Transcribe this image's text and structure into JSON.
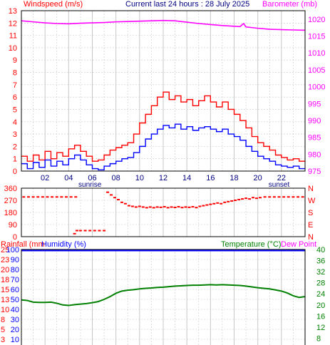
{
  "header": {
    "left_title": "Windspeed (m/s)",
    "center_title": "Current last 24 hours : 28 July 2025",
    "right_title": "Barometer (mb)"
  },
  "colors": {
    "wind_avg": "#0000ff",
    "wind_gust": "#ff0000",
    "barometer": "#ff00ff",
    "direction": "#ff0000",
    "temperature": "#008000",
    "dew_point": "#ff00ff",
    "humidity": "#0000ff",
    "rainfall": "#ff0000",
    "grid": "#c8c8c8",
    "axis": "#000000"
  },
  "chart_data": [
    {
      "id": "wind_baro",
      "type": "line",
      "x_ticks": [
        "02",
        "04",
        "06",
        "08",
        "10",
        "12",
        "14",
        "16",
        "18",
        "20",
        "22"
      ],
      "xlim": [
        0,
        24
      ],
      "annotations": [
        {
          "text": "sunrise",
          "x": 5.8
        },
        {
          "text": "sunset",
          "x": 21.8
        }
      ],
      "y_left_ticks": [
        "0",
        "1",
        "2",
        "3",
        "4",
        "5",
        "6",
        "7",
        "8",
        "9",
        "10",
        "11",
        "12",
        "13"
      ],
      "ylim_left": [
        0,
        13
      ],
      "y_right_ticks": [
        "975",
        "980",
        "985",
        "990",
        "995",
        "1000",
        "1005",
        "1010",
        "1015",
        "1020"
      ],
      "ylim_right": [
        975,
        1022.5
      ],
      "wind_avg_series": [
        [
          0.0,
          0.6
        ],
        [
          0.5,
          0.2
        ],
        [
          1.0,
          0.7
        ],
        [
          1.5,
          0.3
        ],
        [
          2.0,
          0.9
        ],
        [
          2.5,
          0.4
        ],
        [
          3.0,
          0.8
        ],
        [
          3.5,
          0.5
        ],
        [
          4.0,
          1.0
        ],
        [
          4.5,
          1.3
        ],
        [
          5.0,
          0.9
        ],
        [
          5.5,
          0.5
        ],
        [
          6.0,
          0.2
        ],
        [
          6.5,
          0.1
        ],
        [
          7.0,
          0.4
        ],
        [
          7.5,
          0.6
        ],
        [
          8.0,
          0.8
        ],
        [
          8.5,
          1.0
        ],
        [
          9.0,
          1.1
        ],
        [
          9.5,
          1.5
        ],
        [
          10.0,
          2.0
        ],
        [
          10.5,
          2.6
        ],
        [
          11.0,
          3.0
        ],
        [
          11.5,
          3.4
        ],
        [
          12.0,
          3.7
        ],
        [
          12.5,
          3.5
        ],
        [
          13.0,
          3.8
        ],
        [
          13.5,
          3.4
        ],
        [
          14.0,
          3.6
        ],
        [
          14.5,
          3.3
        ],
        [
          15.0,
          3.5
        ],
        [
          15.5,
          3.6
        ],
        [
          16.0,
          3.4
        ],
        [
          16.5,
          3.2
        ],
        [
          17.0,
          3.4
        ],
        [
          17.5,
          3.0
        ],
        [
          18.0,
          2.8
        ],
        [
          18.5,
          2.5
        ],
        [
          19.0,
          2.0
        ],
        [
          19.5,
          1.6
        ],
        [
          20.0,
          1.2
        ],
        [
          20.5,
          1.0
        ],
        [
          21.0,
          0.8
        ],
        [
          21.5,
          0.5
        ],
        [
          22.0,
          0.4
        ],
        [
          22.5,
          0.3
        ],
        [
          23.0,
          0.4
        ],
        [
          23.5,
          0.2
        ]
      ],
      "wind_gust_series": [
        [
          0.0,
          1.2
        ],
        [
          0.5,
          0.8
        ],
        [
          1.0,
          1.3
        ],
        [
          1.5,
          0.9
        ],
        [
          2.0,
          1.6
        ],
        [
          2.5,
          1.0
        ],
        [
          3.0,
          1.5
        ],
        [
          3.5,
          1.2
        ],
        [
          4.0,
          1.8
        ],
        [
          4.5,
          2.1
        ],
        [
          5.0,
          1.6
        ],
        [
          5.5,
          1.2
        ],
        [
          6.0,
          0.8
        ],
        [
          6.5,
          0.9
        ],
        [
          7.0,
          1.3
        ],
        [
          7.5,
          1.7
        ],
        [
          8.0,
          1.9
        ],
        [
          8.5,
          2.1
        ],
        [
          9.0,
          2.3
        ],
        [
          9.5,
          3.0
        ],
        [
          10.0,
          3.9
        ],
        [
          10.5,
          4.6
        ],
        [
          11.0,
          5.3
        ],
        [
          11.5,
          6.0
        ],
        [
          12.0,
          6.4
        ],
        [
          12.5,
          5.8
        ],
        [
          13.0,
          6.1
        ],
        [
          13.5,
          5.6
        ],
        [
          14.0,
          5.8
        ],
        [
          14.5,
          5.3
        ],
        [
          15.0,
          5.7
        ],
        [
          15.5,
          6.1
        ],
        [
          16.0,
          5.6
        ],
        [
          16.5,
          5.2
        ],
        [
          17.0,
          5.6
        ],
        [
          17.5,
          5.0
        ],
        [
          18.0,
          4.6
        ],
        [
          18.5,
          4.1
        ],
        [
          19.0,
          3.5
        ],
        [
          19.5,
          2.8
        ],
        [
          20.0,
          2.3
        ],
        [
          20.5,
          2.0
        ],
        [
          21.0,
          1.7
        ],
        [
          21.5,
          1.3
        ],
        [
          22.0,
          1.1
        ],
        [
          22.5,
          0.9
        ],
        [
          23.0,
          1.0
        ],
        [
          23.5,
          0.8
        ]
      ],
      "barometer_series": [
        [
          0.0,
          1019.5
        ],
        [
          1.0,
          1019.2
        ],
        [
          2.0,
          1018.9
        ],
        [
          3.0,
          1018.7
        ],
        [
          4.0,
          1018.6
        ],
        [
          5.0,
          1018.8
        ],
        [
          6.0,
          1018.9
        ],
        [
          7.0,
          1019.0
        ],
        [
          8.0,
          1019.2
        ],
        [
          9.0,
          1019.3
        ],
        [
          10.0,
          1019.4
        ],
        [
          11.0,
          1019.5
        ],
        [
          12.0,
          1019.6
        ],
        [
          13.0,
          1019.5
        ],
        [
          14.0,
          1019.1
        ],
        [
          15.0,
          1018.7
        ],
        [
          16.0,
          1018.4
        ],
        [
          17.0,
          1018.1
        ],
        [
          18.0,
          1017.9
        ],
        [
          18.5,
          1017.8
        ],
        [
          18.8,
          1018.7
        ],
        [
          19.0,
          1017.7
        ],
        [
          20.0,
          1017.3
        ],
        [
          21.0,
          1017.0
        ],
        [
          22.0,
          1016.9
        ],
        [
          23.0,
          1016.8
        ],
        [
          24.0,
          1016.7
        ]
      ]
    },
    {
      "id": "direction",
      "type": "scatter",
      "xlim": [
        0,
        24
      ],
      "y_left_ticks": [
        "360",
        "270",
        "180",
        "90",
        "0"
      ],
      "ylim": [
        0,
        360
      ],
      "y_right_ticks": [
        "N",
        "W",
        "S",
        "E",
        "N"
      ],
      "points": [
        [
          0.2,
          295
        ],
        [
          0.6,
          295
        ],
        [
          1.0,
          295
        ],
        [
          1.4,
          295
        ],
        [
          1.8,
          295
        ],
        [
          2.2,
          295
        ],
        [
          2.6,
          295
        ],
        [
          3.0,
          295
        ],
        [
          3.4,
          295
        ],
        [
          3.8,
          295
        ],
        [
          4.2,
          295
        ],
        [
          4.6,
          295
        ],
        [
          4.5,
          22
        ],
        [
          4.7,
          45
        ],
        [
          5.0,
          45
        ],
        [
          5.4,
          45
        ],
        [
          5.8,
          45
        ],
        [
          6.2,
          45
        ],
        [
          6.6,
          45
        ],
        [
          7.0,
          45
        ],
        [
          7.3,
          330
        ],
        [
          7.6,
          310
        ],
        [
          7.9,
          290
        ],
        [
          8.2,
          275
        ],
        [
          8.5,
          255
        ],
        [
          8.8,
          245
        ],
        [
          9.1,
          230
        ],
        [
          9.4,
          225
        ],
        [
          9.7,
          220
        ],
        [
          10.0,
          225
        ],
        [
          10.3,
          220
        ],
        [
          10.6,
          215
        ],
        [
          10.9,
          220
        ],
        [
          11.2,
          215
        ],
        [
          11.5,
          220
        ],
        [
          11.8,
          218
        ],
        [
          12.1,
          222
        ],
        [
          12.4,
          215
        ],
        [
          12.7,
          220
        ],
        [
          13.0,
          217
        ],
        [
          13.3,
          222
        ],
        [
          13.6,
          216
        ],
        [
          13.9,
          220
        ],
        [
          14.2,
          218
        ],
        [
          14.5,
          222
        ],
        [
          14.8,
          216
        ],
        [
          15.1,
          225
        ],
        [
          15.4,
          230
        ],
        [
          15.7,
          235
        ],
        [
          16.0,
          240
        ],
        [
          16.3,
          245
        ],
        [
          16.6,
          250
        ],
        [
          16.9,
          245
        ],
        [
          17.2,
          255
        ],
        [
          17.5,
          260
        ],
        [
          17.8,
          265
        ],
        [
          18.1,
          270
        ],
        [
          18.4,
          275
        ],
        [
          18.7,
          280
        ],
        [
          19.0,
          285
        ],
        [
          19.3,
          280
        ],
        [
          19.6,
          290
        ],
        [
          19.9,
          285
        ],
        [
          20.2,
          290
        ],
        [
          20.6,
          295
        ],
        [
          21.0,
          295
        ],
        [
          21.4,
          295
        ],
        [
          21.8,
          295
        ],
        [
          22.2,
          295
        ],
        [
          22.6,
          295
        ],
        [
          23.0,
          295
        ],
        [
          23.4,
          295
        ],
        [
          23.8,
          295
        ]
      ]
    },
    {
      "id": "temp_hum",
      "type": "line",
      "xlim": [
        0,
        24
      ],
      "header_left": [
        "Rainfall (mm",
        "Humidity (%)"
      ],
      "header_right": [
        "Temperature (°C)",
        "Dew Point"
      ],
      "y_left_rain_ticks": [
        "25",
        "23",
        "20",
        "18",
        "15",
        "13",
        "10",
        "8",
        "5",
        "3"
      ],
      "y_left_hum_ticks": [
        "100",
        "90",
        "80",
        "70",
        "60",
        "50",
        "40",
        "30",
        "20",
        "10"
      ],
      "ylim_humidity": [
        0,
        100
      ],
      "y_right_ticks": [
        "40",
        "36",
        "32",
        "28",
        "24",
        "20",
        "16",
        "12",
        "8"
      ],
      "ylim_temperature": [
        4,
        40
      ],
      "humidity_series": [
        [
          0,
          99
        ],
        [
          24,
          99
        ]
      ],
      "temperature_series": [
        [
          0.0,
          21.8
        ],
        [
          0.5,
          21.6
        ],
        [
          1.0,
          21.0
        ],
        [
          1.5,
          20.9
        ],
        [
          2.0,
          20.9
        ],
        [
          2.5,
          21.0
        ],
        [
          3.0,
          20.6
        ],
        [
          3.5,
          20.0
        ],
        [
          4.0,
          19.8
        ],
        [
          4.5,
          20.1
        ],
        [
          5.0,
          20.3
        ],
        [
          5.5,
          20.5
        ],
        [
          6.0,
          20.8
        ],
        [
          6.5,
          21.2
        ],
        [
          7.0,
          22.0
        ],
        [
          7.5,
          23.0
        ],
        [
          8.0,
          24.2
        ],
        [
          8.5,
          25.0
        ],
        [
          9.0,
          25.3
        ],
        [
          9.5,
          25.5
        ],
        [
          10.0,
          25.8
        ],
        [
          10.5,
          26.0
        ],
        [
          11.0,
          26.1
        ],
        [
          11.5,
          26.3
        ],
        [
          12.0,
          26.4
        ],
        [
          12.5,
          26.6
        ],
        [
          13.0,
          26.8
        ],
        [
          13.5,
          26.9
        ],
        [
          14.0,
          27.0
        ],
        [
          14.5,
          27.1
        ],
        [
          15.0,
          27.1
        ],
        [
          15.5,
          27.2
        ],
        [
          16.0,
          27.3
        ],
        [
          16.5,
          27.2
        ],
        [
          17.0,
          27.3
        ],
        [
          17.5,
          27.2
        ],
        [
          18.0,
          27.1
        ],
        [
          18.5,
          27.0
        ],
        [
          19.0,
          26.8
        ],
        [
          19.5,
          26.5
        ],
        [
          20.0,
          26.2
        ],
        [
          20.5,
          26.0
        ],
        [
          21.0,
          25.8
        ],
        [
          21.5,
          25.4
        ],
        [
          22.0,
          25.0
        ],
        [
          22.5,
          24.3
        ],
        [
          23.0,
          23.3
        ],
        [
          23.5,
          22.7
        ],
        [
          24.0,
          23.0
        ]
      ]
    }
  ]
}
